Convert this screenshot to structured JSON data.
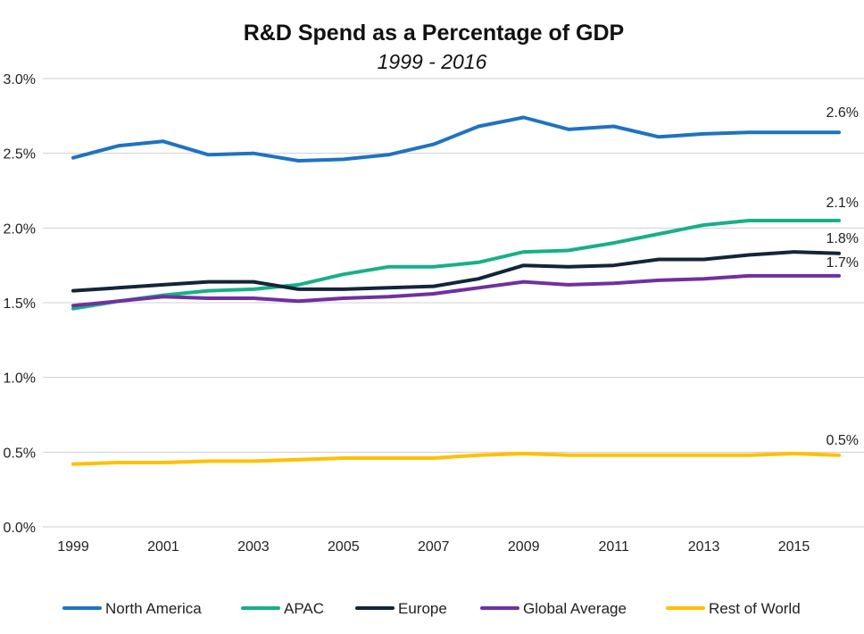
{
  "chart_data": {
    "type": "line",
    "title": "R&D Spend as a Percentage of GDP",
    "subtitle": "1999 - 2016",
    "x": [
      1999,
      2000,
      2001,
      2002,
      2003,
      2004,
      2005,
      2006,
      2007,
      2008,
      2009,
      2010,
      2011,
      2012,
      2013,
      2014,
      2015,
      2016
    ],
    "x_tick_labels": [
      "1999",
      "2001",
      "2003",
      "2005",
      "2007",
      "2009",
      "2011",
      "2013",
      "2015"
    ],
    "y_ticks": [
      0,
      0.5,
      1.0,
      1.5,
      2.0,
      2.5,
      3.0
    ],
    "y_tick_labels": [
      "0.0%",
      "0.5%",
      "1.0%",
      "1.5%",
      "2.0%",
      "2.5%",
      "3.0%"
    ],
    "ylim": [
      0,
      3.0
    ],
    "grid": "horizontal",
    "legend_position": "bottom",
    "series": [
      {
        "name": "North America",
        "color": "#1f73c0",
        "values": [
          2.47,
          2.55,
          2.58,
          2.49,
          2.5,
          2.45,
          2.46,
          2.49,
          2.56,
          2.68,
          2.74,
          2.66,
          2.68,
          2.61,
          2.63,
          2.64,
          2.64,
          2.64
        ],
        "end_label": "2.6%"
      },
      {
        "name": "APAC",
        "color": "#17b088",
        "values": [
          1.46,
          1.51,
          1.55,
          1.58,
          1.59,
          1.62,
          1.69,
          1.74,
          1.74,
          1.77,
          1.84,
          1.85,
          1.9,
          1.96,
          2.02,
          2.05,
          2.05,
          2.05
        ],
        "end_label": "2.1%"
      },
      {
        "name": "Europe",
        "color": "#13253a",
        "values": [
          1.58,
          1.6,
          1.62,
          1.64,
          1.64,
          1.59,
          1.59,
          1.6,
          1.61,
          1.66,
          1.75,
          1.74,
          1.75,
          1.79,
          1.79,
          1.82,
          1.84,
          1.83
        ],
        "end_label": "1.8%"
      },
      {
        "name": "Global Average",
        "color": "#7030a0",
        "values": [
          1.48,
          1.51,
          1.54,
          1.53,
          1.53,
          1.51,
          1.53,
          1.54,
          1.56,
          1.6,
          1.64,
          1.62,
          1.63,
          1.65,
          1.66,
          1.68,
          1.68,
          1.68
        ],
        "end_label": "1.7%"
      },
      {
        "name": "Rest of World",
        "color": "#ffc000",
        "values": [
          0.42,
          0.43,
          0.43,
          0.44,
          0.44,
          0.45,
          0.46,
          0.46,
          0.46,
          0.48,
          0.49,
          0.48,
          0.48,
          0.48,
          0.48,
          0.48,
          0.49,
          0.48
        ],
        "end_label": "0.5%"
      }
    ]
  }
}
